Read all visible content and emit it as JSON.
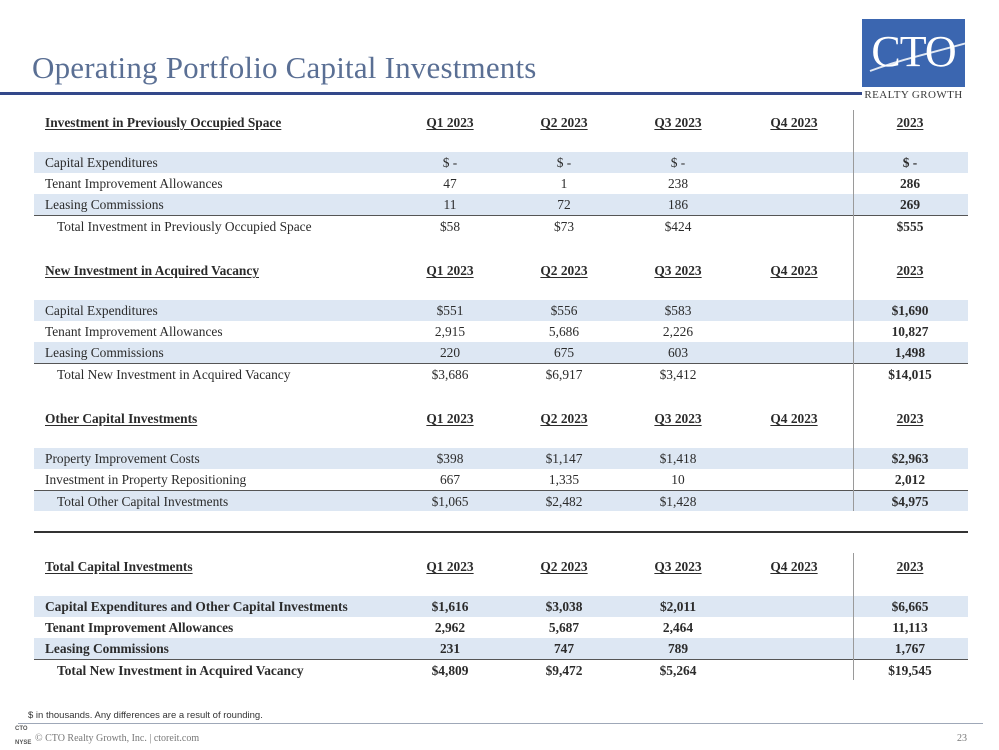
{
  "title": "Operating Portfolio Capital Investments",
  "logo": {
    "mark": "CTO",
    "sub": "REALTY GROWTH"
  },
  "sections": [
    {
      "header": [
        "Investment in Previously Occupied Space",
        "Q1 2023",
        "Q2 2023",
        "Q3 2023",
        "Q4 2023",
        "2023"
      ],
      "rows": [
        [
          "Capital Expenditures",
          "$ -",
          "$ -",
          "$ -",
          "",
          "$ -"
        ],
        [
          "Tenant Improvement Allowances",
          "47",
          "1",
          "238",
          "",
          "286"
        ],
        [
          "Leasing Commissions",
          "11",
          "72",
          "186",
          "",
          "269"
        ]
      ],
      "total": [
        "Total Investment in Previously Occupied Space",
        "$58",
        "$73",
        "$424",
        "",
        "$555"
      ]
    },
    {
      "header": [
        "New Investment in Acquired Vacancy",
        "Q1 2023",
        "Q2 2023",
        "Q3 2023",
        "Q4 2023",
        "2023"
      ],
      "rows": [
        [
          "Capital Expenditures",
          "$551",
          "$556",
          "$583",
          "",
          "$1,690"
        ],
        [
          "Tenant Improvement Allowances",
          "2,915",
          "5,686",
          "2,226",
          "",
          "10,827"
        ],
        [
          "Leasing Commissions",
          "220",
          "675",
          "603",
          "",
          "1,498"
        ]
      ],
      "total": [
        "Total New Investment in Acquired Vacancy",
        "$3,686",
        "$6,917",
        "$3,412",
        "",
        "$14,015"
      ]
    },
    {
      "header": [
        "Other Capital Investments",
        "Q1 2023",
        "Q2 2023",
        "Q3 2023",
        "Q4 2023",
        "2023"
      ],
      "rows": [
        [
          "Property Improvement Costs",
          "$398",
          "$1,147",
          "$1,418",
          "",
          "$2,963"
        ],
        [
          "Investment in Property Repositioning",
          "667",
          "1,335",
          "10",
          "",
          "2,012"
        ]
      ],
      "total": [
        "Total Other Capital Investments",
        "$1,065",
        "$2,482",
        "$1,428",
        "",
        "$4,975"
      ]
    },
    {
      "header": [
        "Total Capital Investments",
        "Q1 2023",
        "Q2 2023",
        "Q3 2023",
        "Q4 2023",
        "2023"
      ],
      "rows": [
        [
          "Capital Expenditures and Other Capital Investments",
          "$1,616",
          "$3,038",
          "$2,011",
          "",
          "$6,665"
        ],
        [
          "Tenant Improvement Allowances",
          "2,962",
          "5,687",
          "2,464",
          "",
          "11,113"
        ],
        [
          "Leasing Commissions",
          "231",
          "747",
          "789",
          "",
          "1,767"
        ]
      ],
      "total": [
        "Total New Investment in Acquired Vacancy",
        "$4,809",
        "$9,472",
        "$5,264",
        "",
        "$19,545"
      ]
    }
  ],
  "footnote": "$ in thousands. Any differences are a result of rounding.",
  "footer": {
    "logo_top": "CTO",
    "logo_bottom": "NYSE",
    "text": "© CTO Realty Growth, Inc. | ctoreit.com",
    "page": "23"
  },
  "colors": {
    "title": "#5a6f94",
    "rule": "#33488a",
    "logo_bg": "#3b66b0",
    "row_shade": "#dde7f3"
  }
}
